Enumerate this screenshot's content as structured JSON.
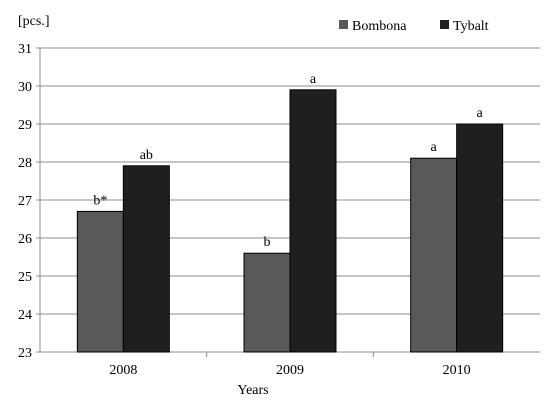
{
  "chart_data": {
    "type": "bar",
    "ylabel": "[pcs.]",
    "xlabel": "Years",
    "categories": [
      "2008",
      "2009",
      "2010"
    ],
    "ylim": [
      23,
      31
    ],
    "yticks": [
      23,
      24,
      25,
      26,
      27,
      28,
      29,
      30,
      31
    ],
    "grid": true,
    "legend_position": "top-right",
    "series": [
      {
        "name": "Bombona",
        "color": "#595959",
        "values": [
          26.7,
          25.6,
          28.1
        ],
        "labels": [
          "b*",
          "b",
          "a"
        ]
      },
      {
        "name": "Tybalt",
        "color": "#1f1f1f",
        "values": [
          27.9,
          29.9,
          29.0
        ],
        "labels": [
          "ab",
          "a",
          "a"
        ]
      }
    ]
  }
}
